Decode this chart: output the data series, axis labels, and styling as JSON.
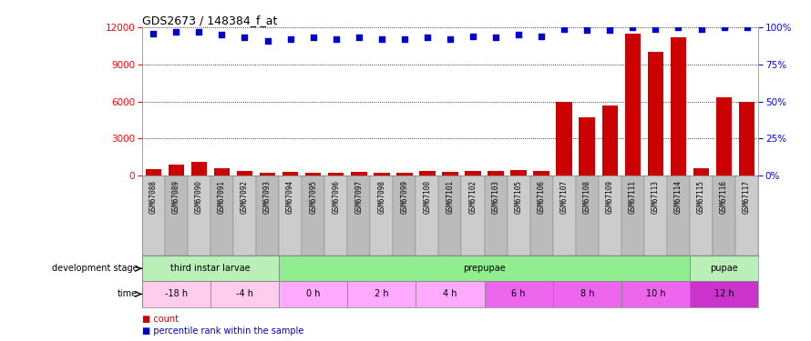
{
  "title": "GDS2673 / 148384_f_at",
  "samples": [
    "GSM67088",
    "GSM67089",
    "GSM67090",
    "GSM67091",
    "GSM67092",
    "GSM67093",
    "GSM67094",
    "GSM67095",
    "GSM67096",
    "GSM67097",
    "GSM67098",
    "GSM67099",
    "GSM67100",
    "GSM67101",
    "GSM67102",
    "GSM67103",
    "GSM67105",
    "GSM67106",
    "GSM67107",
    "GSM67108",
    "GSM67109",
    "GSM67111",
    "GSM67113",
    "GSM67114",
    "GSM67115",
    "GSM67116",
    "GSM67117"
  ],
  "counts": [
    500,
    900,
    1100,
    600,
    350,
    250,
    300,
    250,
    250,
    300,
    250,
    250,
    350,
    300,
    400,
    350,
    450,
    350,
    6000,
    4700,
    5700,
    11500,
    10000,
    11200,
    600,
    6300,
    6000
  ],
  "percentile_ranks": [
    96,
    97,
    97,
    95,
    93,
    91,
    92,
    93,
    92,
    93,
    92,
    92,
    93,
    92,
    94,
    93,
    95,
    94,
    99,
    98,
    98,
    100,
    99,
    100,
    99,
    100,
    100
  ],
  "bar_color": "#cc0000",
  "dot_color": "#0000cc",
  "ylim_left": [
    0,
    12000
  ],
  "yticks_left": [
    0,
    3000,
    6000,
    9000,
    12000
  ],
  "ylim_right": [
    0,
    100
  ],
  "yticks_right": [
    0,
    25,
    50,
    75,
    100
  ],
  "yticklabels_right": [
    "0%",
    "25%",
    "50%",
    "75%",
    "100%"
  ],
  "dev_stages": [
    {
      "label": "third instar larvae",
      "start": 0,
      "end": 6,
      "color": "#b8f0b8"
    },
    {
      "label": "prepupae",
      "start": 6,
      "end": 24,
      "color": "#90ee90"
    },
    {
      "label": "pupae",
      "start": 24,
      "end": 27,
      "color": "#b8f0b8"
    }
  ],
  "time_segs": [
    {
      "label": "-18 h",
      "start": 0,
      "end": 3,
      "color": "#ffccee"
    },
    {
      "label": "-4 h",
      "start": 3,
      "end": 6,
      "color": "#ffccee"
    },
    {
      "label": "0 h",
      "start": 6,
      "end": 9,
      "color": "#ffaaff"
    },
    {
      "label": "2 h",
      "start": 9,
      "end": 12,
      "color": "#ffaaff"
    },
    {
      "label": "4 h",
      "start": 12,
      "end": 15,
      "color": "#ffaaff"
    },
    {
      "label": "6 h",
      "start": 15,
      "end": 18,
      "color": "#ee66ee"
    },
    {
      "label": "8 h",
      "start": 18,
      "end": 21,
      "color": "#ee66ee"
    },
    {
      "label": "10 h",
      "start": 21,
      "end": 24,
      "color": "#ee66ee"
    },
    {
      "label": "12 h",
      "start": 24,
      "end": 27,
      "color": "#cc33cc"
    }
  ],
  "label_dev": "development stage",
  "label_time": "time",
  "legend_count": "count",
  "legend_pct": "percentile rank within the sample",
  "sample_band_color": "#cccccc",
  "sample_band_alt": "#bbbbbb"
}
